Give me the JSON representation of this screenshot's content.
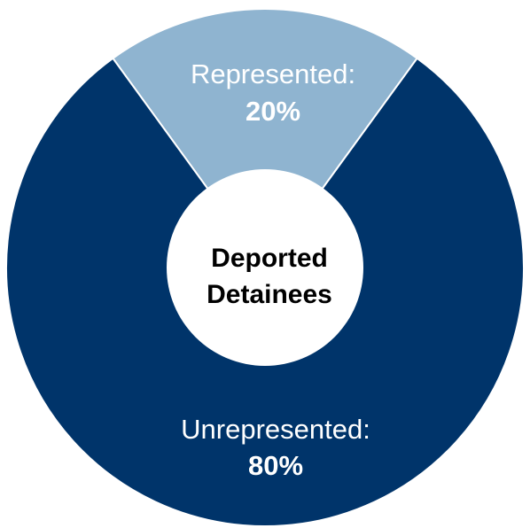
{
  "chart_data": {
    "type": "pie",
    "title": "",
    "center_label": [
      "Deported",
      "Detainees"
    ],
    "slices": [
      {
        "label": "Represented:",
        "value_label": "20%",
        "value": 20,
        "color": "#8fb4d0"
      },
      {
        "label": "Unrepresented:",
        "value_label": "80%",
        "value": 80,
        "color": "#00346a"
      }
    ],
    "legend": "none"
  }
}
